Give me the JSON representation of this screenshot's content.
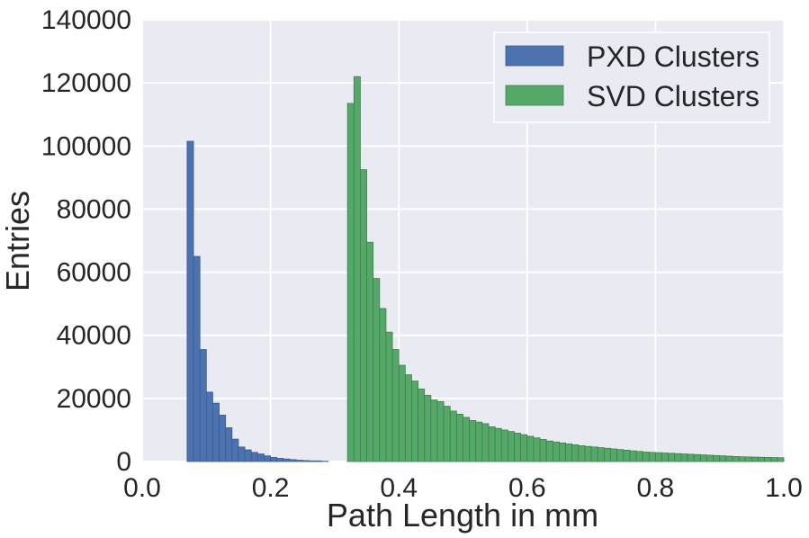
{
  "chart_data": {
    "type": "bar",
    "title": "",
    "xlabel": "Path Length in mm",
    "ylabel": "Entries",
    "xlim": [
      0.0,
      1.0
    ],
    "ylim": [
      0,
      140000
    ],
    "xticks": [
      0.0,
      0.2,
      0.4,
      0.6,
      0.8,
      1.0
    ],
    "xtick_labels": [
      "0.0",
      "0.2",
      "0.4",
      "0.6",
      "0.8",
      "1.0"
    ],
    "yticks": [
      0,
      20000,
      40000,
      60000,
      80000,
      100000,
      120000,
      140000
    ],
    "ytick_labels": [
      "0",
      "20000",
      "40000",
      "60000",
      "80000",
      "100000",
      "120000",
      "140000"
    ],
    "grid": true,
    "legend_position": "top-right",
    "bin_width": 0.01,
    "series": [
      {
        "name": "PXD Clusters",
        "color": "#4c72b0",
        "bin_start": 0.07,
        "values": [
          101500,
          65000,
          35500,
          22000,
          18500,
          14700,
          10700,
          7100,
          4600,
          3700,
          2900,
          2400,
          1800,
          1300,
          1000,
          800,
          600,
          400,
          300,
          200,
          200,
          100
        ]
      },
      {
        "name": "SVD Clusters",
        "color": "#55a868",
        "bin_start": 0.32,
        "values": [
          113500,
          122000,
          92500,
          69500,
          58000,
          48500,
          41000,
          35500,
          30500,
          27500,
          25500,
          23000,
          21000,
          19500,
          19000,
          17500,
          16000,
          15000,
          14000,
          13000,
          12500,
          12000,
          11000,
          10500,
          10000,
          9500,
          9000,
          8500,
          8000,
          7500,
          7000,
          6500,
          6200,
          5900,
          5600,
          5300,
          5000,
          4800,
          4600,
          4400,
          4200,
          4000,
          3800,
          3600,
          3400,
          3200,
          3000,
          2900,
          2800,
          2700,
          2600,
          2500,
          2400,
          2300,
          2200,
          2100,
          2000,
          1900,
          1800,
          1700,
          1600,
          1500,
          1450,
          1400,
          1350,
          1300,
          1250,
          1200
        ]
      }
    ]
  }
}
